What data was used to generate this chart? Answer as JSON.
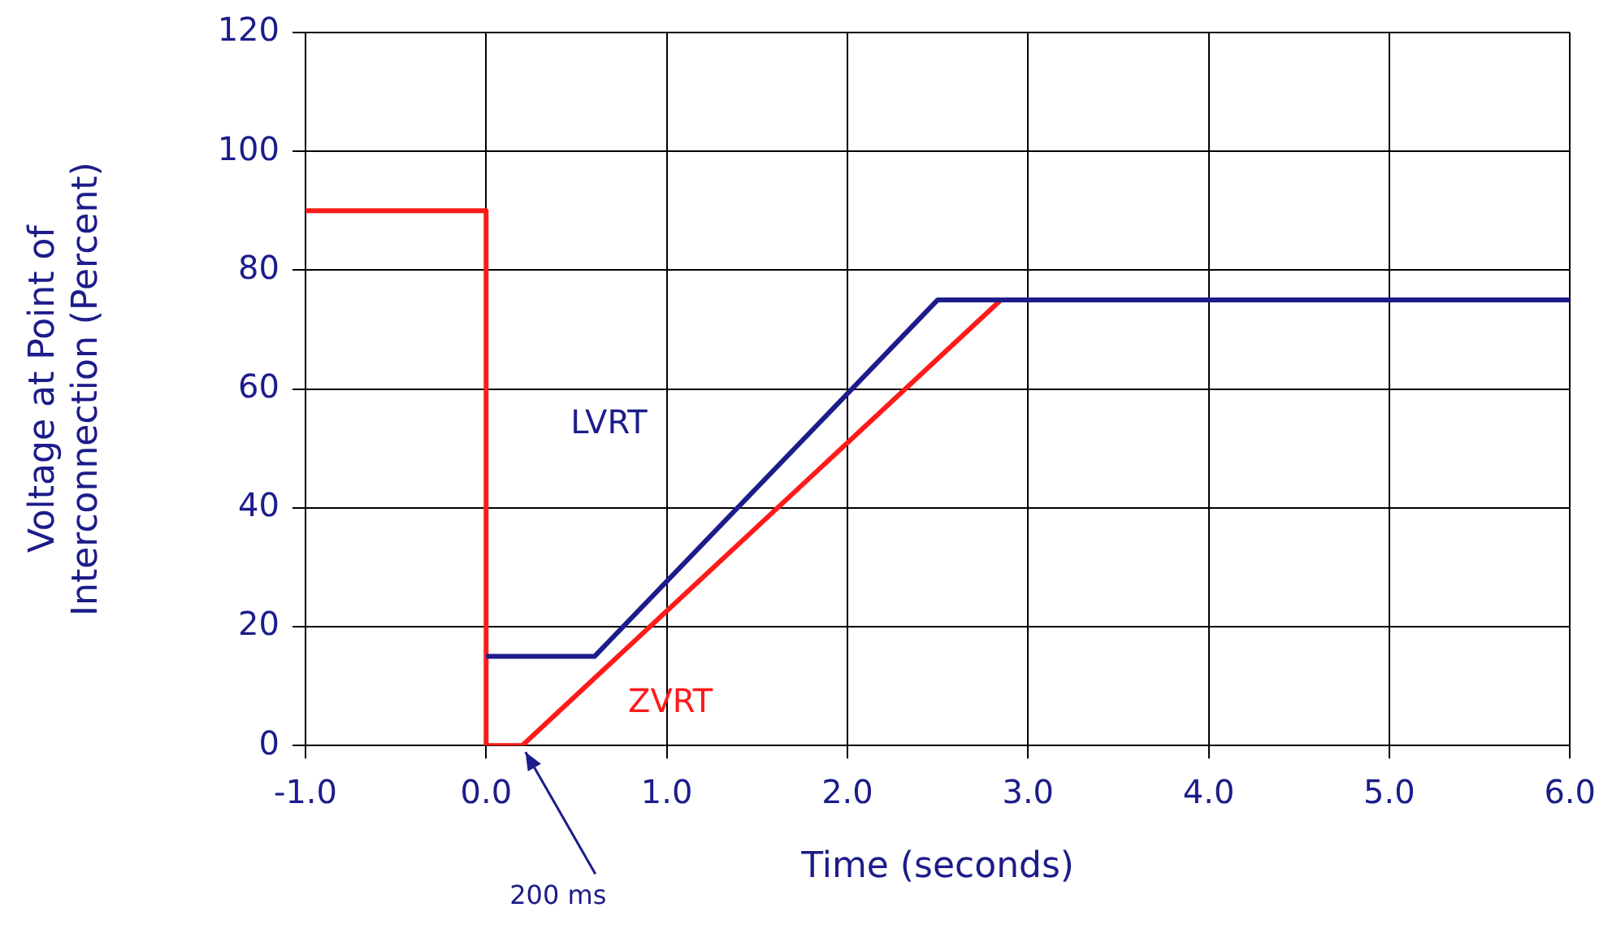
{
  "chart_data": {
    "type": "line",
    "xlabel": "Time (seconds)",
    "ylabel": "Voltage at Point of\nInterconnection (Percent)",
    "xlim": [
      -1,
      6
    ],
    "xticks": [
      {
        "value": -1,
        "label": "-1.0"
      },
      {
        "value": 0,
        "label": "0.0"
      },
      {
        "value": 1,
        "label": "1.0"
      },
      {
        "value": 2,
        "label": "2.0"
      },
      {
        "value": 3,
        "label": "3.0"
      },
      {
        "value": 4,
        "label": "4.0"
      },
      {
        "value": 5,
        "label": "5.0"
      },
      {
        "value": 6,
        "label": "6.0"
      }
    ],
    "ylim": [
      0,
      120
    ],
    "yticks": [
      0,
      20,
      40,
      60,
      80,
      100,
      120
    ],
    "grid": true,
    "legend": false,
    "marker": "none",
    "line_style": "solid",
    "series": [
      {
        "name": "LVRT",
        "color": "#1c1c8a",
        "x": [
          0,
          0.6,
          2.5,
          6
        ],
        "values": [
          15,
          15,
          75,
          75
        ]
      },
      {
        "name": "ZVRT",
        "color": "#ff1a1a",
        "x": [
          -1,
          0,
          0,
          0.2,
          2.85
        ],
        "values": [
          90,
          90,
          0,
          0,
          75
        ]
      }
    ],
    "annotations": [
      {
        "text": "200 ms",
        "x": 0.2,
        "y": 0
      }
    ]
  }
}
